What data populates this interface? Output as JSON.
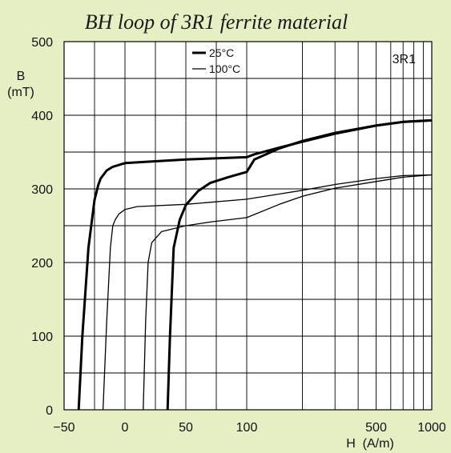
{
  "chart_data": {
    "type": "line",
    "title": "BH loop of 3R1 ferrite material",
    "material_tag": "3R1",
    "ylabel_line1": "B",
    "ylabel_line2": "(mT)",
    "xlabel": "H  (A/m)",
    "x_ticks": [
      "−50",
      "0",
      "50",
      "100",
      "500",
      "1000"
    ],
    "y_ticks": [
      "0",
      "100",
      "200",
      "300",
      "400",
      "500"
    ],
    "ylim": [
      0,
      500
    ],
    "x_scale": "linear from -50 to 100, logarithmic from 100 to 1000",
    "grid": true,
    "legend_position": "top-center",
    "legend": [
      {
        "label": "25°C",
        "line": "thick"
      },
      {
        "label": "100°C",
        "line": "thin"
      }
    ],
    "series": [
      {
        "name": "25°C",
        "branches": [
          {
            "part": "descending",
            "points": [
              [
                1000,
                393
              ],
              [
                700,
                391
              ],
              [
                500,
                386
              ],
              [
                300,
                375
              ],
              [
                200,
                364
              ],
              [
                150,
                356
              ],
              [
                110,
                347
              ],
              [
                100,
                343
              ],
              [
                50,
                340
              ],
              [
                0,
                335
              ],
              [
                -10,
                330
              ],
              [
                -15,
                325
              ],
              [
                -20,
                314
              ],
              [
                -22,
                305
              ],
              [
                -25,
                285
              ],
              [
                -30,
                220
              ],
              [
                -35,
                100
              ],
              [
                -38,
                0
              ]
            ]
          },
          {
            "part": "ascending",
            "points": [
              [
                35,
                0
              ],
              [
                37,
                100
              ],
              [
                40,
                220
              ],
              [
                45,
                258
              ],
              [
                50,
                278
              ],
              [
                60,
                297
              ],
              [
                70,
                308
              ],
              [
                85,
                316
              ],
              [
                100,
                323
              ],
              [
                110,
                340
              ],
              [
                150,
                355
              ],
              [
                200,
                365
              ],
              [
                300,
                376
              ],
              [
                500,
                386
              ],
              [
                700,
                391
              ],
              [
                1000,
                393
              ]
            ]
          }
        ]
      },
      {
        "name": "100°C",
        "branches": [
          {
            "part": "descending",
            "points": [
              [
                1000,
                319
              ],
              [
                700,
                318
              ],
              [
                500,
                314
              ],
              [
                300,
                306
              ],
              [
                200,
                298
              ],
              [
                150,
                293
              ],
              [
                100,
                286
              ],
              [
                50,
                279
              ],
              [
                10,
                276
              ],
              [
                0,
                272
              ],
              [
                -5,
                266
              ],
              [
                -8,
                258
              ],
              [
                -10,
                250
              ],
              [
                -12,
                220
              ],
              [
                -15,
                120
              ],
              [
                -18,
                0
              ]
            ]
          },
          {
            "part": "ascending",
            "points": [
              [
                15,
                0
              ],
              [
                17,
                120
              ],
              [
                19,
                200
              ],
              [
                22,
                227
              ],
              [
                30,
                242
              ],
              [
                50,
                250
              ],
              [
                70,
                255
              ],
              [
                100,
                261
              ],
              [
                150,
                279
              ],
              [
                200,
                290
              ],
              [
                300,
                301
              ],
              [
                500,
                310
              ],
              [
                700,
                316
              ],
              [
                1000,
                319
              ]
            ]
          }
        ]
      }
    ],
    "colors": {
      "background": "#e6efc3",
      "plot_area": "#ffffff",
      "lines": "#000000"
    }
  }
}
